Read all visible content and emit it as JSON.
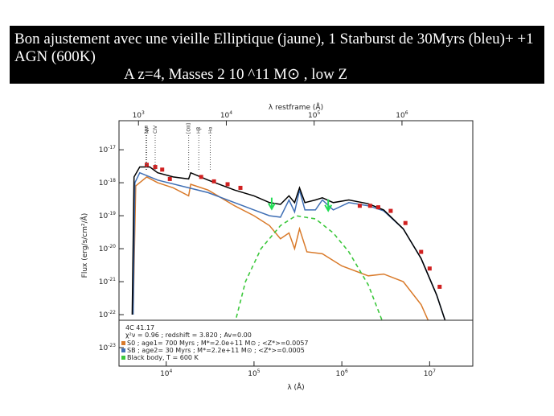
{
  "header": {
    "lines": [
      "Bon ajustement avec  une vieille Elliptique (jaune),  1 Starburst de 30Myrs (bleu)+ +1",
      "AGN (600K)",
      "A z=4, Masses 2 10 ^11 M⊙ , low Z"
    ]
  },
  "chart_data": {
    "type": "line",
    "log_x": true,
    "log_y": true,
    "xlabel": "λ (Å)",
    "ylabel": "Flux (erg/s/cm²/Å)",
    "x2label": "λ restframe (Å)",
    "xlim": [
      2900,
      31000000
    ],
    "ylim": [
      2.75e-24,
      7.6e-17
    ],
    "x2lim": [
      600,
      6400000
    ],
    "xticks": [
      {
        "value": 10000,
        "label": "10",
        "exponent": "4"
      },
      {
        "value": 100000,
        "label": "10",
        "exponent": "5"
      },
      {
        "value": 1000000,
        "label": "10",
        "exponent": "6"
      },
      {
        "value": 10000000,
        "label": "10",
        "exponent": "7"
      }
    ],
    "x2ticks": [
      {
        "value": 1000,
        "label": "10",
        "exponent": "3"
      },
      {
        "value": 10000,
        "label": "10",
        "exponent": "4"
      },
      {
        "value": 100000,
        "label": "10",
        "exponent": "5"
      },
      {
        "value": 1000000,
        "label": "10",
        "exponent": "6"
      }
    ],
    "yticks": [
      {
        "value": 1e-17,
        "label": "10",
        "exponent": "-17"
      },
      {
        "value": 1e-18,
        "label": "10",
        "exponent": "-18"
      },
      {
        "value": 1e-19,
        "label": "10",
        "exponent": "-19"
      },
      {
        "value": 1e-20,
        "label": "10",
        "exponent": "-20"
      },
      {
        "value": 1e-21,
        "label": "10",
        "exponent": "-21"
      },
      {
        "value": 1e-22,
        "label": "10",
        "exponent": "-22"
      },
      {
        "value": 1e-23,
        "label": "10",
        "exponent": "-23"
      }
    ],
    "spectral_lines": [
      {
        "label": "Lyα",
        "x": 1216
      },
      {
        "label": "NV",
        "x": 1240
      },
      {
        "label": "CIV",
        "x": 1549
      },
      {
        "label": "[OII]",
        "x": 3727
      },
      {
        "label": "Hβ",
        "x": 4861
      },
      {
        "label": "Hα",
        "x": 6563
      }
    ],
    "legend_title": "4C 41.17",
    "legend_info": "χ²ν = 0.96 ; redshift = 3.820 ; Av=0.00",
    "series": [
      {
        "style": "solid",
        "color": "#d97a2a",
        "name": "S0  ; age1=  700 Myrs  ; M*=2.0e+11 M⊙ ; <Z*>=0.0057",
        "x": [
          4200,
          4500,
          6000,
          8000,
          12000,
          18000,
          19000,
          30000,
          60000,
          100000,
          150000,
          200000,
          250000,
          290000,
          330000,
          400000,
          600000,
          1000000,
          2000000,
          3000000,
          5000000,
          8000000,
          11000000
        ],
        "values": [
          1e-22,
          8e-19,
          1.5e-18,
          1e-18,
          7e-19,
          4e-19,
          9e-19,
          6e-19,
          2e-19,
          1e-19,
          5e-20,
          2e-20,
          3e-20,
          1e-20,
          4e-20,
          8e-21,
          7e-21,
          3e-21,
          1.5e-21,
          1.7e-21,
          1e-21,
          2e-22,
          3e-23
        ]
      },
      {
        "style": "solid",
        "color": "#3f6fb5",
        "name": "SB  ; age2=   30 Myrs  ; M*=2.2e+11 M⊙ ; <Z*>=0.0005",
        "x": [
          4200,
          4400,
          5000,
          8000,
          18000,
          30000,
          60000,
          100000,
          150000,
          200000,
          250000,
          290000,
          330000,
          380000,
          500000,
          600000,
          800000,
          1200000,
          2000000,
          3000000,
          5000000,
          8000000,
          12000000,
          16000000
        ],
        "values": [
          1e-22,
          1e-18,
          2e-18,
          1.2e-18,
          7e-19,
          5e-19,
          2.5e-19,
          1.5e-19,
          1e-19,
          9e-20,
          3e-19,
          1.3e-19,
          6e-19,
          1.5e-19,
          1.5e-19,
          3e-19,
          1.5e-19,
          2.5e-19,
          2e-19,
          1.4e-19,
          4e-20,
          5e-21,
          4e-22,
          4e-23
        ]
      },
      {
        "style": "dashed",
        "color": "#3cc83c",
        "name": "Black body, T = 600 K",
        "x": [
          60000,
          80000,
          120000,
          200000,
          300000,
          500000,
          800000,
          1200000,
          2000000,
          3000000
        ],
        "values": [
          5e-23,
          1e-21,
          1e-20,
          5e-20,
          1e-19,
          8e-20,
          3e-20,
          8e-21,
          8e-22,
          5e-23
        ]
      },
      {
        "style": "solid",
        "color": "#000000",
        "x": [
          4100,
          4300,
          5000,
          6500,
          8000,
          12000,
          18000,
          19000,
          30000,
          60000,
          100000,
          150000,
          200000,
          250000,
          290000,
          330000,
          380000,
          500000,
          600000,
          800000,
          1200000,
          2000000,
          3000000,
          5000000,
          8000000,
          12000000,
          16000000
        ],
        "values": [
          1e-22,
          1.5e-18,
          3e-18,
          3e-18,
          2e-18,
          1.5e-18,
          1.3e-18,
          2e-18,
          1.2e-18,
          6e-19,
          4e-19,
          2.5e-19,
          2.2e-19,
          4e-19,
          2.5e-19,
          7e-19,
          2.5e-19,
          3e-19,
          3.5e-19,
          2.5e-19,
          3e-19,
          2.3e-19,
          1.5e-19,
          4e-20,
          5e-21,
          4e-22,
          4e-23
        ]
      },
      {
        "style": "points",
        "color": "#d02020",
        "x": [
          6000,
          7500,
          9000,
          11000,
          25000,
          35000,
          50000,
          70000,
          1600000,
          2100000,
          2600000,
          3600000,
          5300000,
          8000000,
          10000000,
          13000000
        ],
        "values": [
          3.5e-18,
          3e-18,
          2.5e-18,
          1.3e-18,
          1.5e-18,
          1.1e-18,
          9e-19,
          7e-19,
          2e-19,
          2e-19,
          1.8e-19,
          1.4e-19,
          6e-20,
          8e-21,
          2.5e-21,
          7e-22
        ]
      },
      {
        "style": "upper-limits",
        "color": "#22dd55",
        "x": [
          159000,
          700000
        ],
        "values": [
          1.8e-19,
          1.6e-19
        ]
      }
    ]
  }
}
